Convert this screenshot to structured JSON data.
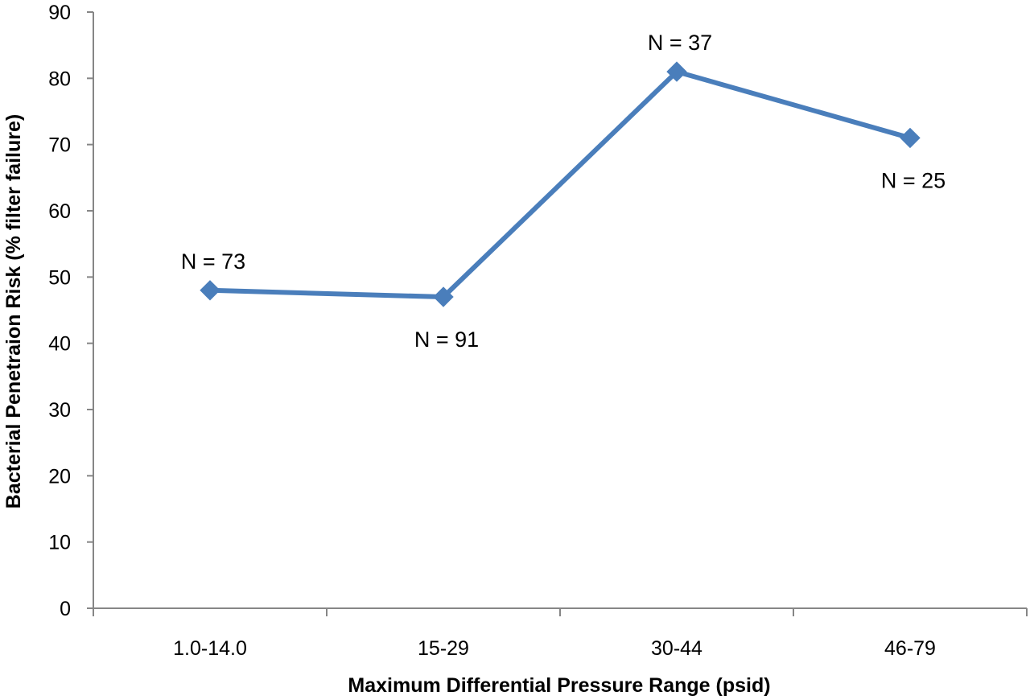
{
  "chart_data": {
    "type": "line",
    "title": "",
    "xlabel": "Maximum Differential Pressure Range (psid)",
    "ylabel": "Bacterial Penetraion Risk (% filter failure)",
    "categories": [
      "1.0-14.0",
      "15-29",
      "30-44",
      "46-79"
    ],
    "series": [
      {
        "values": [
          48,
          47,
          81,
          71
        ]
      }
    ],
    "data_labels": [
      "N = 73",
      "N = 91",
      "N = 37",
      "N = 25"
    ],
    "data_label_positions": [
      "above",
      "below",
      "above",
      "below"
    ],
    "ylim": [
      0,
      90
    ],
    "yticks": [
      0,
      10,
      20,
      30,
      40,
      50,
      60,
      70,
      80,
      90
    ],
    "marker": "diamond",
    "grid": false,
    "legend": "none",
    "colors": {
      "series": "#4a7ebb",
      "axis": "#868686"
    }
  }
}
